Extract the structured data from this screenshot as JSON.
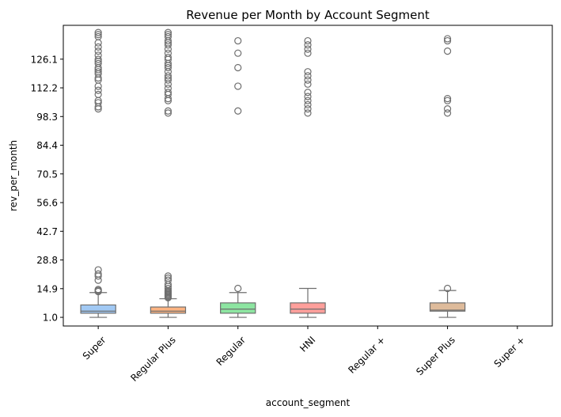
{
  "chart_data": {
    "type": "box",
    "title": "Revenue per Month by Account Segment",
    "xlabel": "account_segment",
    "ylabel": "rev_per_month",
    "ylim": [
      -3.2,
      142.5
    ],
    "yticks": [
      1.0,
      14.9,
      28.8,
      42.7,
      56.6,
      70.5,
      84.4,
      98.3,
      112.2,
      126.1
    ],
    "ytick_labels": [
      "1.0",
      "14.9",
      "28.8",
      "42.7",
      "56.6",
      "70.5",
      "84.4",
      "98.3",
      "112.2",
      "126.1"
    ],
    "grid": false,
    "categories": [
      "Super",
      "Regular Plus",
      "Regular",
      "HNI",
      "Regular +",
      "Super Plus",
      "Super +"
    ],
    "boxes": [
      {
        "category": "Super",
        "color": "#a1c9f4",
        "whisker_low": 1,
        "q1": 3,
        "median": 4,
        "q3": 7,
        "whisker_high": 13,
        "outliers": [
          13.5,
          14,
          14.5,
          19,
          21,
          22,
          24,
          102,
          103,
          105,
          106,
          109,
          111,
          113,
          116,
          117,
          119,
          120,
          121,
          122,
          124,
          125,
          126,
          128,
          130,
          132,
          134,
          137,
          138,
          139
        ]
      },
      {
        "category": "Regular Plus",
        "color": "#ffb482",
        "whisker_low": 1,
        "q1": 3,
        "median": 4,
        "q3": 6,
        "whisker_high": 10,
        "outliers": [
          10.5,
          11,
          11.5,
          12,
          12.5,
          13,
          13.5,
          14,
          15,
          16,
          17,
          19,
          20,
          21,
          100,
          101,
          106,
          107,
          109,
          110,
          112,
          114,
          116,
          117,
          118,
          120,
          122,
          123,
          124,
          126,
          127,
          129,
          131,
          133,
          134,
          135,
          137,
          138,
          139
        ]
      },
      {
        "category": "Regular",
        "color": "#8de5a1",
        "whisker_low": 1,
        "q1": 3,
        "median": 5,
        "q3": 8,
        "whisker_high": 13,
        "outliers": [
          15,
          101,
          113,
          122,
          129,
          135
        ]
      },
      {
        "category": "HNI",
        "color": "#ff9f9b",
        "whisker_low": 1,
        "q1": 3,
        "median": 5,
        "q3": 8,
        "whisker_high": 15,
        "outliers": [
          100,
          102,
          104,
          106,
          108,
          110,
          114,
          116,
          118,
          120,
          129,
          131,
          133,
          135
        ]
      },
      {
        "category": "Regular +",
        "color": "#d0bbff",
        "empty": true
      },
      {
        "category": "Super Plus",
        "color": "#debb9b",
        "whisker_low": 1,
        "q1": 4,
        "median": 4.5,
        "q3": 8,
        "whisker_high": 14,
        "outliers": [
          15,
          100,
          102,
          106,
          107,
          130,
          135,
          136
        ]
      },
      {
        "category": "Super +",
        "color": "#fab0e4",
        "empty": true
      }
    ]
  }
}
